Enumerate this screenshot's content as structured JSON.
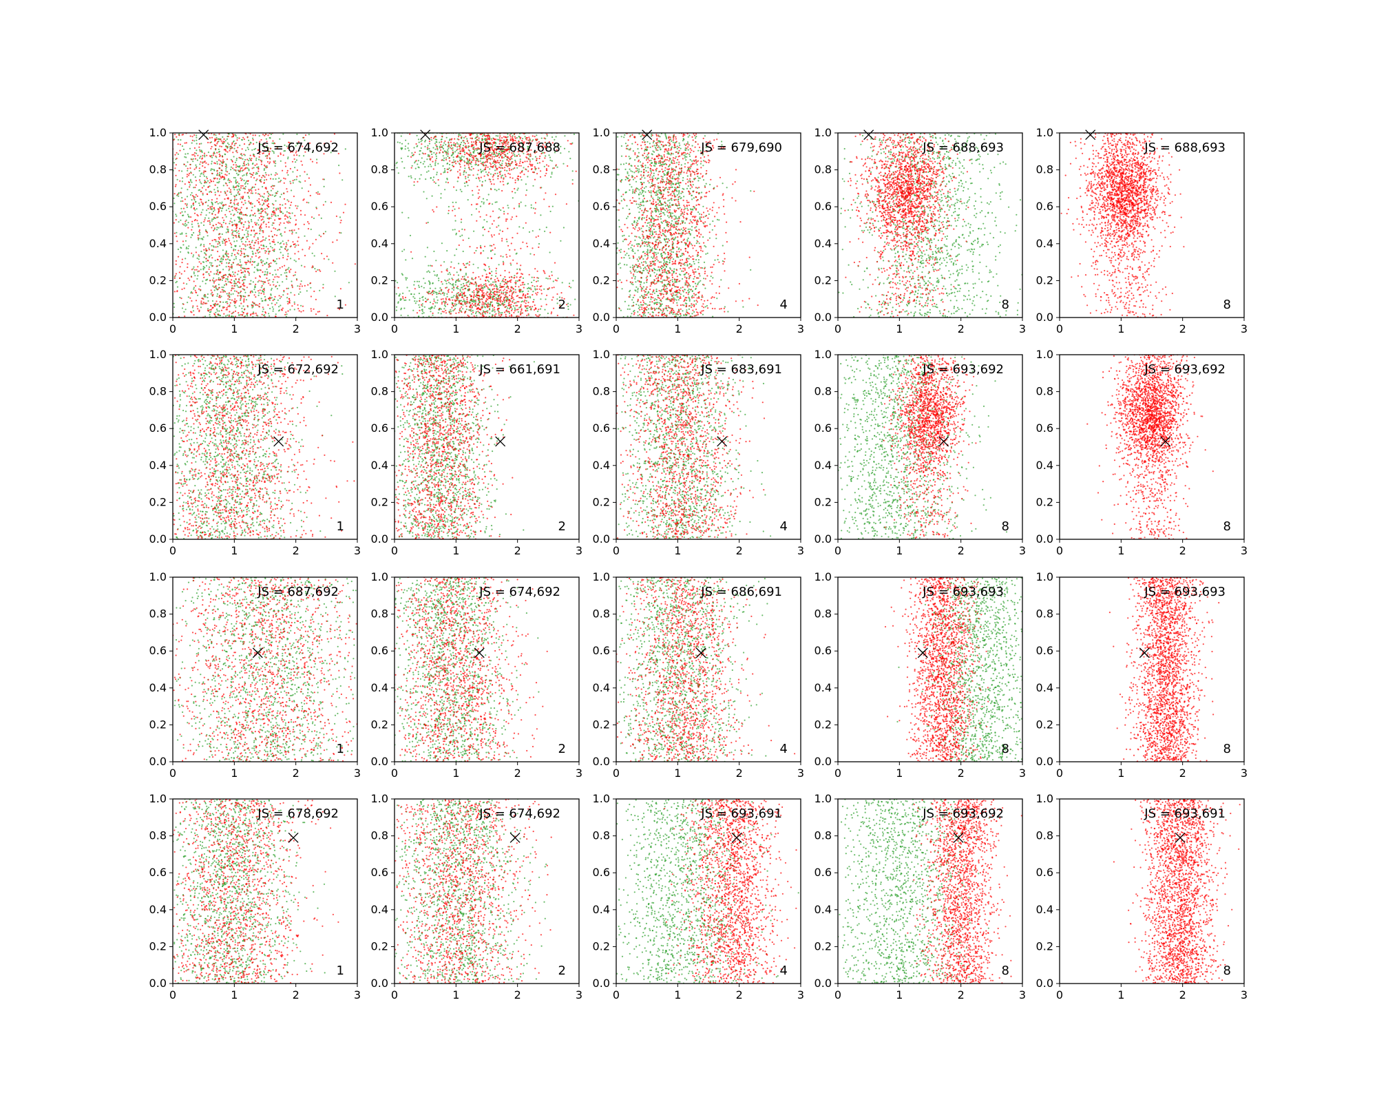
{
  "chart_data": {
    "type": "scatter",
    "layout": {
      "rows": 4,
      "cols": 5
    },
    "xlim": [
      0,
      3
    ],
    "ylim": [
      0,
      1
    ],
    "xticks": [
      "0",
      "1",
      "2",
      "3"
    ],
    "yticks": [
      "0.0",
      "0.2",
      "0.4",
      "0.6",
      "0.8",
      "1.0"
    ],
    "grid": false,
    "colors": {
      "green": "#2ca02c",
      "red": "#ff0000",
      "marker": "#000000"
    },
    "panels": [
      {
        "row": 0,
        "col": 0,
        "js_label": "JS = 674,692",
        "n_label": "1",
        "marker": {
          "x": 0.5,
          "y": 0.99
        },
        "series": [
          {
            "color": "green",
            "count": 1300,
            "xmean": 1.0,
            "xsd": 0.62,
            "ymode": "uniform"
          },
          {
            "color": "red",
            "count": 1300,
            "xmean": 1.1,
            "xsd": 0.68,
            "ymode": "uniform"
          }
        ]
      },
      {
        "row": 0,
        "col": 1,
        "js_label": "JS = 687,688",
        "n_label": "2",
        "marker": {
          "x": 0.5,
          "y": 0.99
        },
        "series": [
          {
            "color": "green",
            "count": 1400,
            "xmean": 1.3,
            "xsd": 0.75,
            "ymode": "bimodal"
          },
          {
            "color": "red",
            "count": 1400,
            "xmean": 1.6,
            "xsd": 0.5,
            "ymode": "bimodal"
          }
        ]
      },
      {
        "row": 0,
        "col": 2,
        "js_label": "JS = 679,690",
        "n_label": "4",
        "marker": {
          "x": 0.5,
          "y": 0.99
        },
        "series": [
          {
            "color": "green",
            "count": 1300,
            "xmean": 0.75,
            "xsd": 0.38,
            "ymode": "uniform"
          },
          {
            "color": "red",
            "count": 1300,
            "xmean": 0.9,
            "xsd": 0.4,
            "ymode": "uniform"
          }
        ]
      },
      {
        "row": 0,
        "col": 3,
        "js_label": "JS = 688,693",
        "n_label": "8",
        "marker": {
          "x": 0.5,
          "y": 0.99
        },
        "series": [
          {
            "color": "green",
            "count": 1200,
            "xmean": 1.5,
            "xsd": 0.6,
            "ymode": "uniform"
          },
          {
            "color": "red",
            "count": 1800,
            "xmean": 1.1,
            "xsd": 0.32,
            "ymode": "high"
          }
        ]
      },
      {
        "row": 0,
        "col": 4,
        "js_label": "JS = 688,693",
        "n_label": "8",
        "marker": {
          "x": 0.5,
          "y": 0.99
        },
        "series": [
          {
            "color": "red",
            "count": 2200,
            "xmean": 1.05,
            "xsd": 0.3,
            "ymode": "high"
          }
        ]
      },
      {
        "row": 1,
        "col": 0,
        "js_label": "JS = 672,692",
        "n_label": "1",
        "marker": {
          "x": 1.72,
          "y": 0.53
        },
        "series": [
          {
            "color": "green",
            "count": 1300,
            "xmean": 0.9,
            "xsd": 0.55,
            "ymode": "uniform"
          },
          {
            "color": "red",
            "count": 1300,
            "xmean": 1.0,
            "xsd": 0.6,
            "ymode": "uniform"
          }
        ]
      },
      {
        "row": 1,
        "col": 1,
        "js_label": "JS = 661,691",
        "n_label": "2",
        "marker": {
          "x": 1.72,
          "y": 0.53
        },
        "series": [
          {
            "color": "green",
            "count": 1300,
            "xmean": 0.75,
            "xsd": 0.4,
            "ymode": "uniform"
          },
          {
            "color": "red",
            "count": 1300,
            "xmean": 0.75,
            "xsd": 0.4,
            "ymode": "uniform"
          }
        ]
      },
      {
        "row": 1,
        "col": 2,
        "js_label": "JS = 683,691",
        "n_label": "4",
        "marker": {
          "x": 1.72,
          "y": 0.53
        },
        "series": [
          {
            "color": "green",
            "count": 1300,
            "xmean": 1.0,
            "xsd": 0.5,
            "ymode": "uniform"
          },
          {
            "color": "red",
            "count": 1300,
            "xmean": 1.05,
            "xsd": 0.45,
            "ymode": "uniform"
          }
        ]
      },
      {
        "row": 1,
        "col": 3,
        "js_label": "JS = 693,692",
        "n_label": "8",
        "marker": {
          "x": 1.72,
          "y": 0.53
        },
        "series": [
          {
            "color": "green",
            "count": 1300,
            "xmean": 0.95,
            "xsd": 0.55,
            "ymode": "uniform"
          },
          {
            "color": "red",
            "count": 1600,
            "xmean": 1.5,
            "xsd": 0.25,
            "ymode": "high"
          }
        ]
      },
      {
        "row": 1,
        "col": 4,
        "js_label": "JS = 693,692",
        "n_label": "8",
        "marker": {
          "x": 1.72,
          "y": 0.53
        },
        "series": [
          {
            "color": "red",
            "count": 2200,
            "xmean": 1.5,
            "xsd": 0.27,
            "ymode": "high"
          }
        ]
      },
      {
        "row": 2,
        "col": 0,
        "js_label": "JS = 687,692",
        "n_label": "1",
        "marker": {
          "x": 1.38,
          "y": 0.59
        },
        "series": [
          {
            "color": "green",
            "count": 1300,
            "xmean": 1.5,
            "xsd": 0.7,
            "ymode": "uniform"
          },
          {
            "color": "red",
            "count": 1300,
            "xmean": 1.5,
            "xsd": 0.75,
            "ymode": "uniform"
          }
        ]
      },
      {
        "row": 2,
        "col": 1,
        "js_label": "JS = 674,692",
        "n_label": "2",
        "marker": {
          "x": 1.38,
          "y": 0.59
        },
        "series": [
          {
            "color": "green",
            "count": 1300,
            "xmean": 0.9,
            "xsd": 0.45,
            "ymode": "uniform"
          },
          {
            "color": "red",
            "count": 1300,
            "xmean": 1.0,
            "xsd": 0.5,
            "ymode": "uniform"
          }
        ]
      },
      {
        "row": 2,
        "col": 2,
        "js_label": "JS = 686,691",
        "n_label": "4",
        "marker": {
          "x": 1.38,
          "y": 0.59
        },
        "series": [
          {
            "color": "green",
            "count": 1300,
            "xmean": 1.0,
            "xsd": 0.5,
            "ymode": "uniform"
          },
          {
            "color": "red",
            "count": 1300,
            "xmean": 1.1,
            "xsd": 0.45,
            "ymode": "uniform"
          }
        ]
      },
      {
        "row": 2,
        "col": 3,
        "js_label": "JS = 693,693",
        "n_label": "8",
        "marker": {
          "x": 1.38,
          "y": 0.59
        },
        "series": [
          {
            "color": "green",
            "count": 1300,
            "xmean": 2.35,
            "xsd": 0.4,
            "ymode": "uniform"
          },
          {
            "color": "red",
            "count": 1800,
            "xmean": 1.7,
            "xsd": 0.25,
            "ymode": "uniform"
          }
        ]
      },
      {
        "row": 2,
        "col": 4,
        "js_label": "JS = 693,693",
        "n_label": "8",
        "marker": {
          "x": 1.38,
          "y": 0.59
        },
        "series": [
          {
            "color": "red",
            "count": 2200,
            "xmean": 1.72,
            "xsd": 0.25,
            "ymode": "uniform"
          }
        ]
      },
      {
        "row": 3,
        "col": 0,
        "js_label": "JS = 678,692",
        "n_label": "1",
        "marker": {
          "x": 1.96,
          "y": 0.79
        },
        "series": [
          {
            "color": "green",
            "count": 1300,
            "xmean": 0.9,
            "xsd": 0.5,
            "ymode": "uniform"
          },
          {
            "color": "red",
            "count": 1300,
            "xmean": 1.0,
            "xsd": 0.55,
            "ymode": "uniform"
          }
        ]
      },
      {
        "row": 3,
        "col": 1,
        "js_label": "JS = 674,692",
        "n_label": "2",
        "marker": {
          "x": 1.96,
          "y": 0.79
        },
        "series": [
          {
            "color": "green",
            "count": 1300,
            "xmean": 1.0,
            "xsd": 0.5,
            "ymode": "uniform"
          },
          {
            "color": "red",
            "count": 1300,
            "xmean": 1.05,
            "xsd": 0.55,
            "ymode": "uniform"
          }
        ]
      },
      {
        "row": 3,
        "col": 2,
        "js_label": "JS = 693,691",
        "n_label": "4",
        "marker": {
          "x": 1.96,
          "y": 0.79
        },
        "series": [
          {
            "color": "green",
            "count": 1300,
            "xmean": 1.0,
            "xsd": 0.55,
            "ymode": "uniform"
          },
          {
            "color": "red",
            "count": 1700,
            "xmean": 1.9,
            "xsd": 0.35,
            "ymode": "uniform"
          }
        ]
      },
      {
        "row": 3,
        "col": 3,
        "js_label": "JS = 693,692",
        "n_label": "8",
        "marker": {
          "x": 1.96,
          "y": 0.79
        },
        "series": [
          {
            "color": "green",
            "count": 1300,
            "xmean": 1.0,
            "xsd": 0.55,
            "ymode": "uniform"
          },
          {
            "color": "red",
            "count": 1700,
            "xmean": 2.0,
            "xsd": 0.28,
            "ymode": "uniform"
          }
        ]
      },
      {
        "row": 3,
        "col": 4,
        "js_label": "JS = 693,691",
        "n_label": "8",
        "marker": {
          "x": 1.96,
          "y": 0.79
        },
        "series": [
          {
            "color": "red",
            "count": 2200,
            "xmean": 1.95,
            "xsd": 0.28,
            "ymode": "uniform"
          }
        ]
      }
    ]
  }
}
